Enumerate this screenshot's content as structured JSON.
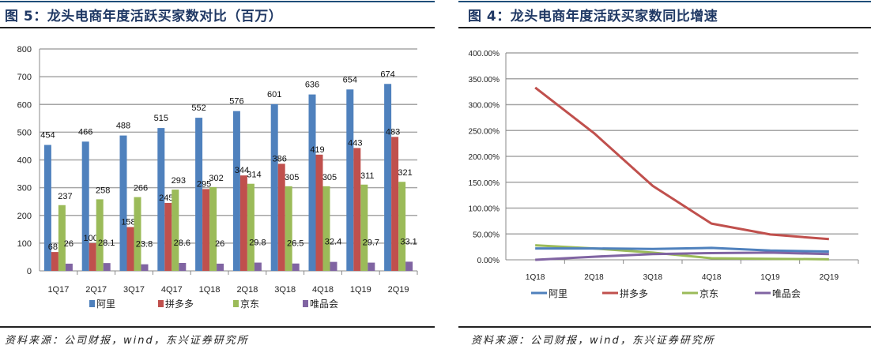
{
  "left_panel": {
    "title": "图 5：龙头电商年度活跃买家数对比（百万）",
    "source": "资料来源：公司财报，wind，东兴证券研究所"
  },
  "right_panel": {
    "title": "图 4：龙头电商年度活跃买家数同比增速",
    "source": "资料来源：公司财报，wind，东兴证券研究所"
  },
  "colors": {
    "ali": "#4f81bd",
    "pdd": "#c0504d",
    "jd": "#9bbb59",
    "vip": "#8064a2",
    "title": "#1f3864"
  },
  "chart_data": [
    {
      "type": "bar",
      "title": "龙头电商年度活跃买家数对比（百万）",
      "xlabel": "",
      "ylabel": "",
      "ylim": [
        0,
        800
      ],
      "yticks": [
        "0",
        "100",
        "200",
        "300",
        "400",
        "500",
        "600",
        "700",
        "800"
      ],
      "grid": true,
      "legend": "bottom",
      "categories": [
        "1Q17",
        "2Q17",
        "3Q17",
        "4Q17",
        "1Q18",
        "2Q18",
        "3Q18",
        "4Q18",
        "1Q19",
        "2Q19"
      ],
      "series": [
        {
          "name": "阿里",
          "values": [
            454,
            466,
            488,
            515,
            552,
            576,
            601,
            636,
            654,
            674
          ]
        },
        {
          "name": "拼多多",
          "values": [
            68,
            100,
            158,
            245,
            295,
            344,
            386,
            419,
            443,
            483
          ]
        },
        {
          "name": "京东",
          "values": [
            237,
            258,
            266,
            293,
            302,
            314,
            305,
            305,
            311,
            321
          ]
        },
        {
          "name": "唯品会",
          "values": [
            26,
            28.1,
            23.8,
            28.6,
            26,
            29.8,
            26.5,
            32.4,
            29.7,
            33.1
          ]
        }
      ]
    },
    {
      "type": "line",
      "title": "龙头电商年度活跃买家数同比增速",
      "xlabel": "",
      "ylabel": "",
      "ylim": [
        0,
        400
      ],
      "yticks": [
        "0.00%",
        "50.00%",
        "100.00%",
        "150.00%",
        "200.00%",
        "250.00%",
        "300.00%",
        "350.00%",
        "400.00%"
      ],
      "grid": true,
      "legend": "bottom",
      "categories": [
        "1Q18",
        "2Q18",
        "3Q18",
        "4Q18",
        "1Q19",
        "2Q19"
      ],
      "series": [
        {
          "name": "阿里",
          "values": [
            22,
            22,
            21,
            23,
            18,
            16
          ]
        },
        {
          "name": "拼多多",
          "values": [
            333,
            245,
            143,
            70,
            49,
            40
          ]
        },
        {
          "name": "京东",
          "values": [
            28,
            22,
            14,
            3,
            2,
            1
          ]
        },
        {
          "name": "唯品会",
          "values": [
            0,
            6,
            11,
            13,
            14,
            11
          ]
        }
      ]
    }
  ]
}
